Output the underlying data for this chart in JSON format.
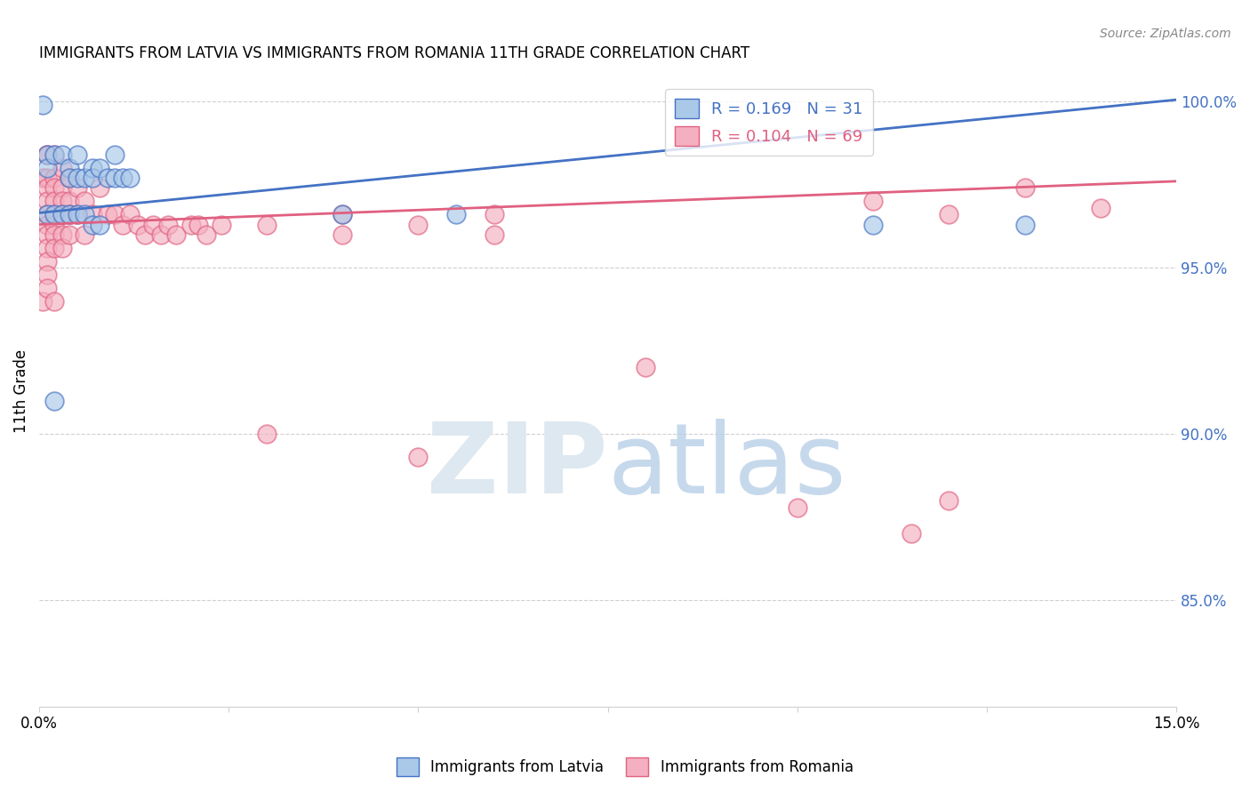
{
  "title": "IMMIGRANTS FROM LATVIA VS IMMIGRANTS FROM ROMANIA 11TH GRADE CORRELATION CHART",
  "source": "Source: ZipAtlas.com",
  "ylabel": "11th Grade",
  "ylabel_right_labels": [
    "100.0%",
    "95.0%",
    "90.0%",
    "85.0%"
  ],
  "ylabel_right_values": [
    1.0,
    0.95,
    0.9,
    0.85
  ],
  "xmin": 0.0,
  "xmax": 0.15,
  "ymin": 0.818,
  "ymax": 1.008,
  "latvia_color": "#aac8e8",
  "romania_color": "#f4b0c0",
  "latvia_line_color": "#4472c4",
  "romania_line_color": "#e06080",
  "latvia_trend": [
    0.9665,
    1.0005
  ],
  "romania_trend": [
    0.963,
    0.976
  ],
  "legend_latvia_label": "R = 0.169   N = 31",
  "legend_romania_label": "R = 0.104   N = 69",
  "latvia_points": [
    [
      0.0005,
      0.999
    ],
    [
      0.001,
      0.984
    ],
    [
      0.001,
      0.98
    ],
    [
      0.002,
      0.984
    ],
    [
      0.003,
      0.984
    ],
    [
      0.004,
      0.98
    ],
    [
      0.004,
      0.977
    ],
    [
      0.005,
      0.984
    ],
    [
      0.005,
      0.977
    ],
    [
      0.006,
      0.977
    ],
    [
      0.007,
      0.98
    ],
    [
      0.007,
      0.977
    ],
    [
      0.008,
      0.98
    ],
    [
      0.009,
      0.977
    ],
    [
      0.01,
      0.984
    ],
    [
      0.01,
      0.977
    ],
    [
      0.011,
      0.977
    ],
    [
      0.012,
      0.977
    ],
    [
      0.001,
      0.966
    ],
    [
      0.002,
      0.966
    ],
    [
      0.003,
      0.966
    ],
    [
      0.004,
      0.966
    ],
    [
      0.005,
      0.966
    ],
    [
      0.006,
      0.966
    ],
    [
      0.007,
      0.963
    ],
    [
      0.008,
      0.963
    ],
    [
      0.002,
      0.91
    ],
    [
      0.04,
      0.966
    ],
    [
      0.055,
      0.966
    ],
    [
      0.11,
      0.963
    ],
    [
      0.13,
      0.963
    ]
  ],
  "romania_points": [
    [
      0.0005,
      0.977
    ],
    [
      0.001,
      0.984
    ],
    [
      0.001,
      0.984
    ],
    [
      0.001,
      0.977
    ],
    [
      0.001,
      0.974
    ],
    [
      0.001,
      0.97
    ],
    [
      0.001,
      0.966
    ],
    [
      0.001,
      0.963
    ],
    [
      0.001,
      0.96
    ],
    [
      0.001,
      0.956
    ],
    [
      0.001,
      0.952
    ],
    [
      0.001,
      0.948
    ],
    [
      0.002,
      0.984
    ],
    [
      0.002,
      0.977
    ],
    [
      0.002,
      0.974
    ],
    [
      0.002,
      0.97
    ],
    [
      0.002,
      0.966
    ],
    [
      0.002,
      0.963
    ],
    [
      0.002,
      0.96
    ],
    [
      0.002,
      0.956
    ],
    [
      0.003,
      0.98
    ],
    [
      0.003,
      0.974
    ],
    [
      0.003,
      0.97
    ],
    [
      0.003,
      0.966
    ],
    [
      0.003,
      0.96
    ],
    [
      0.003,
      0.956
    ],
    [
      0.004,
      0.977
    ],
    [
      0.004,
      0.97
    ],
    [
      0.004,
      0.966
    ],
    [
      0.004,
      0.96
    ],
    [
      0.005,
      0.974
    ],
    [
      0.005,
      0.966
    ],
    [
      0.006,
      0.97
    ],
    [
      0.006,
      0.96
    ],
    [
      0.007,
      0.966
    ],
    [
      0.008,
      0.974
    ],
    [
      0.009,
      0.966
    ],
    [
      0.01,
      0.966
    ],
    [
      0.011,
      0.963
    ],
    [
      0.012,
      0.966
    ],
    [
      0.013,
      0.963
    ],
    [
      0.014,
      0.96
    ],
    [
      0.015,
      0.963
    ],
    [
      0.016,
      0.96
    ],
    [
      0.017,
      0.963
    ],
    [
      0.018,
      0.96
    ],
    [
      0.02,
      0.963
    ],
    [
      0.021,
      0.963
    ],
    [
      0.022,
      0.96
    ],
    [
      0.024,
      0.963
    ],
    [
      0.0005,
      0.94
    ],
    [
      0.001,
      0.944
    ],
    [
      0.002,
      0.94
    ],
    [
      0.03,
      0.963
    ],
    [
      0.04,
      0.96
    ],
    [
      0.04,
      0.966
    ],
    [
      0.05,
      0.963
    ],
    [
      0.06,
      0.966
    ],
    [
      0.06,
      0.96
    ],
    [
      0.08,
      0.92
    ],
    [
      0.11,
      0.97
    ],
    [
      0.12,
      0.966
    ],
    [
      0.13,
      0.974
    ],
    [
      0.14,
      0.968
    ],
    [
      0.03,
      0.9
    ],
    [
      0.05,
      0.893
    ],
    [
      0.1,
      0.878
    ],
    [
      0.12,
      0.88
    ],
    [
      0.115,
      0.87
    ]
  ]
}
